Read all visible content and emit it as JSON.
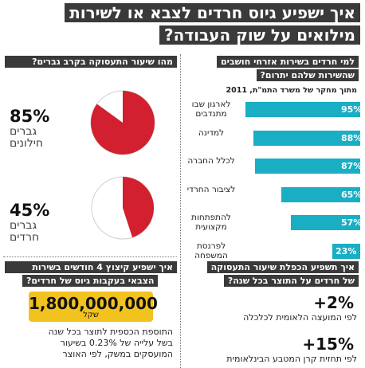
{
  "title": {
    "line1": "איך ישפיע גיוס חרדים לצבא או לשירות",
    "line2": "מילואים על שוק העבודה?"
  },
  "bar_section": {
    "header_line1": "למי חרדים בשירות אזרחי חושבים",
    "header_line2": "שהשירות שלהם יתרום?",
    "source": "מתוך מחקר של משרד התמ\"ת, 2011"
  },
  "pie_section": {
    "header": "מהו שיעור התעסוקה בקרב גברים?",
    "pies": [
      {
        "percent_label": "85%",
        "label_line1": "גברים",
        "label_line2": "חילונים"
      },
      {
        "percent_label": "45%",
        "label_line1": "גברים",
        "label_line2": "חרדים"
      }
    ]
  },
  "gdp_section": {
    "header_line1": "איך תשפיע הכפלת שיעור התעסוקה",
    "header_line2": "של חרדים על התוצר בכל שנה?",
    "stats": [
      {
        "value": "+2%",
        "note": "לפי המועצה הלאומית לכלכלה"
      },
      {
        "value": "+15%",
        "note": "לפי תחזית קרן המטבע הבינלאומית"
      }
    ]
  },
  "cost_section": {
    "header_line1": "איך ישפיע קיצוץ 4 חודשים בשירות",
    "header_line2": "הצבאי בעקבות גיוס של חרדים?",
    "amount": "1,800,000,000",
    "unit": "שקל",
    "note_line1": "התוספת הכספית לתוצר בכל שנה",
    "note_line2": "בשל עלייה של 0.23% בשיעור",
    "note_line3": "המועסקים במשק, לפי האוצר"
  },
  "colors": {
    "bar": "#19aec4",
    "pie_fill": "#d32030",
    "header_bg": "#3a3a3a",
    "money_bg": "#f2c21f"
  },
  "chart_data": [
    {
      "type": "bar",
      "orientation": "horizontal",
      "categories": [
        "לארגון שבו מתנדבים",
        "למדינה",
        "לכלל החברה",
        "לציבור החרדי",
        "להתפתחות מקצועית",
        "לפרנסת המשפחה"
      ],
      "values": [
        95,
        88,
        87,
        65,
        57,
        23
      ],
      "value_labels": [
        "95%",
        "88%",
        "87%",
        "65%",
        "57%",
        "23%"
      ],
      "unit": "%",
      "xlim": [
        0,
        100
      ]
    },
    {
      "type": "pie",
      "slices": [
        {
          "value": 85
        },
        {
          "value": 15
        }
      ],
      "label": "85%"
    },
    {
      "type": "pie",
      "slices": [
        {
          "value": 45
        },
        {
          "value": 55
        }
      ],
      "label": "45%"
    }
  ]
}
